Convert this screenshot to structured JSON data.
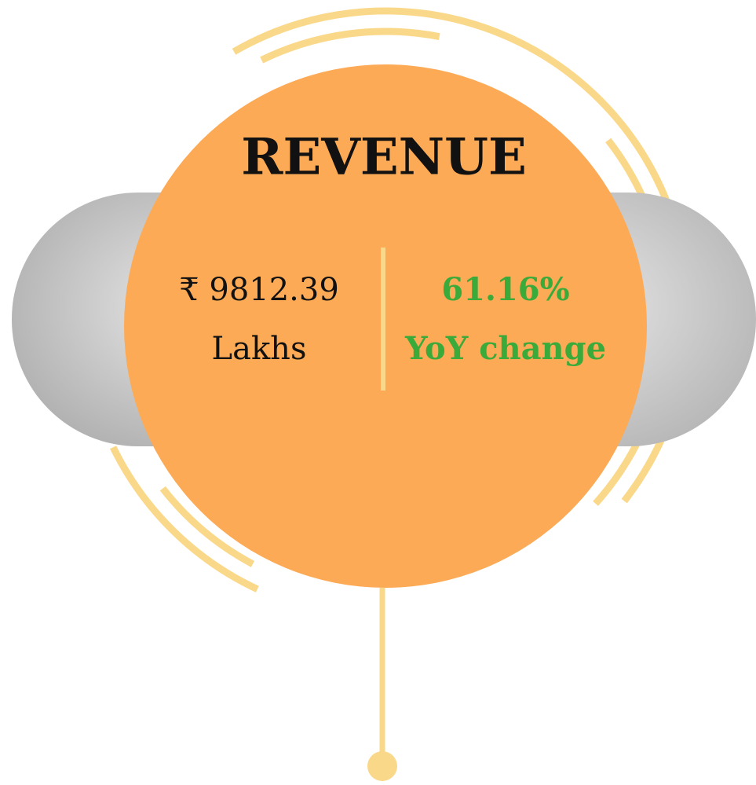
{
  "title": "REVENUE",
  "metrics": [
    {
      "value": "₹ 9812.39",
      "unit": "Lakhs"
    },
    {
      "value": "61.16%",
      "unit": "YoY change"
    }
  ]
}
